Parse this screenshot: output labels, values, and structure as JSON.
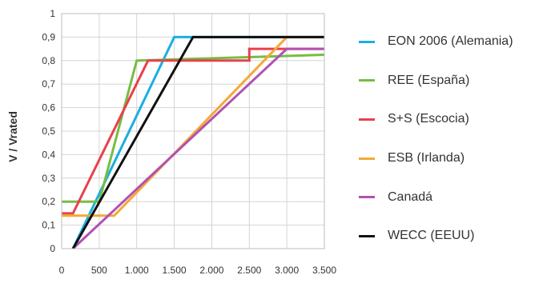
{
  "chart_data": {
    "type": "line",
    "title": "",
    "xlabel": "",
    "ylabel": "V / Vrated",
    "xlim": [
      0,
      3500
    ],
    "ylim": [
      0,
      1
    ],
    "grid": true,
    "legend_position": "right",
    "x_tick_labels": [
      "0",
      "500",
      "1.000",
      "1.500",
      "2.000",
      "2.500",
      "3.000",
      "3.500"
    ],
    "x_ticks": [
      0,
      500,
      1000,
      1500,
      2000,
      2500,
      3000,
      3500
    ],
    "y_tick_labels": [
      "0",
      "0,1",
      "0,2",
      "0,3",
      "0,4",
      "0,5",
      "0,6",
      "0,7",
      "0,8",
      "0,9",
      "1"
    ],
    "y_ticks": [
      0,
      0.1,
      0.2,
      0.3,
      0.4,
      0.5,
      0.6,
      0.7,
      0.8,
      0.9,
      1
    ],
    "series": [
      {
        "name": "EON 2006 (Alemania)",
        "color": "#1aaee3",
        "points": [
          [
            150,
            0
          ],
          [
            1500,
            0.9
          ],
          [
            3500,
            0.9
          ]
        ]
      },
      {
        "name": "REE (España)",
        "color": "#76bd43",
        "points": [
          [
            0,
            0.2
          ],
          [
            500,
            0.2
          ],
          [
            1000,
            0.8
          ],
          [
            3500,
            0.825
          ]
        ]
      },
      {
        "name": "S+S (Escocia)",
        "color": "#e8414b",
        "points": [
          [
            0,
            0.15
          ],
          [
            150,
            0.15
          ],
          [
            1150,
            0.8
          ],
          [
            2500,
            0.8
          ],
          [
            2500,
            0.85
          ],
          [
            3500,
            0.85
          ]
        ]
      },
      {
        "name": "ESB (Irlanda)",
        "color": "#f3a936",
        "points": [
          [
            0,
            0.14
          ],
          [
            700,
            0.14
          ],
          [
            3000,
            0.9
          ],
          [
            3500,
            0.9
          ]
        ]
      },
      {
        "name": "Canadá",
        "color": "#b152b0",
        "points": [
          [
            150,
            0
          ],
          [
            3000,
            0.85
          ],
          [
            3500,
            0.85
          ]
        ]
      },
      {
        "name": "WECC (EEUU)",
        "color": "#111111",
        "points": [
          [
            150,
            0
          ],
          [
            1750,
            0.9
          ],
          [
            3500,
            0.9
          ]
        ]
      }
    ]
  }
}
